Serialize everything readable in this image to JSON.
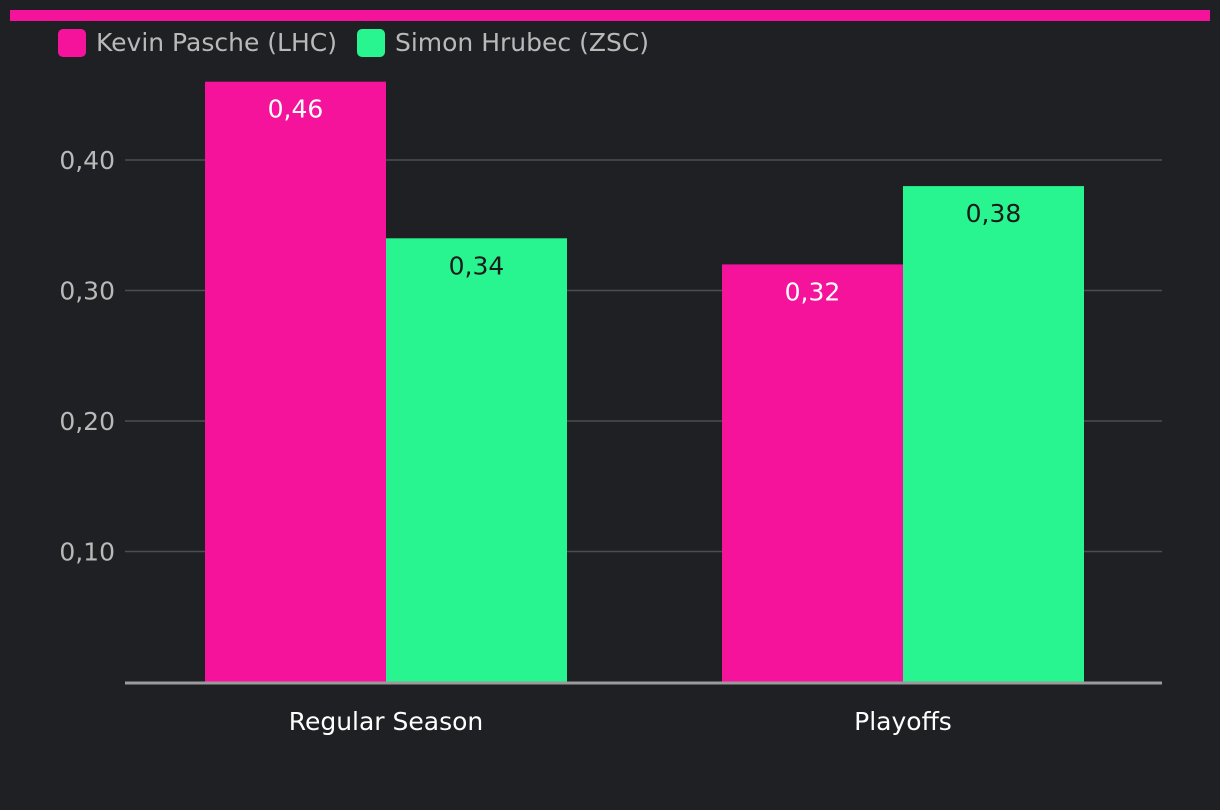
{
  "colors": {
    "background": "#1f2023",
    "accent": "#f5139b",
    "series_a": "#f5139b",
    "series_b": "#29f590",
    "gridline": "#4d4d4f",
    "axis_line": "#9b9b9b",
    "tick_text": "#b9b9b9",
    "category_text": "#ffffff",
    "label_on_a": "#ffffff",
    "label_on_b": "#1b1b1b"
  },
  "legend": [
    {
      "label": "Kevin Pasche (LHC)",
      "color": "#f5139b"
    },
    {
      "label": "Simon Hrubec (ZSC)",
      "color": "#29f590"
    }
  ],
  "chart_data": {
    "type": "bar",
    "title": "",
    "xlabel": "",
    "ylabel": "",
    "categories": [
      "Regular Season",
      "Playoffs"
    ],
    "series": [
      {
        "name": "Kevin Pasche (LHC)",
        "values": [
          0.46,
          0.32
        ],
        "labels": [
          "0,46",
          "0,32"
        ],
        "color": "#f5139b"
      },
      {
        "name": "Simon Hrubec (ZSC)",
        "values": [
          0.34,
          0.38
        ],
        "labels": [
          "0,34",
          "0,38"
        ],
        "color": "#29f590"
      }
    ],
    "ylim": [
      0,
      0.46
    ],
    "yticks": [
      0.1,
      0.2,
      0.3,
      0.4
    ],
    "ytick_labels": [
      "0,10",
      "0,20",
      "0,30",
      "0,40"
    ],
    "grid": true,
    "legend_position": "top-left"
  }
}
